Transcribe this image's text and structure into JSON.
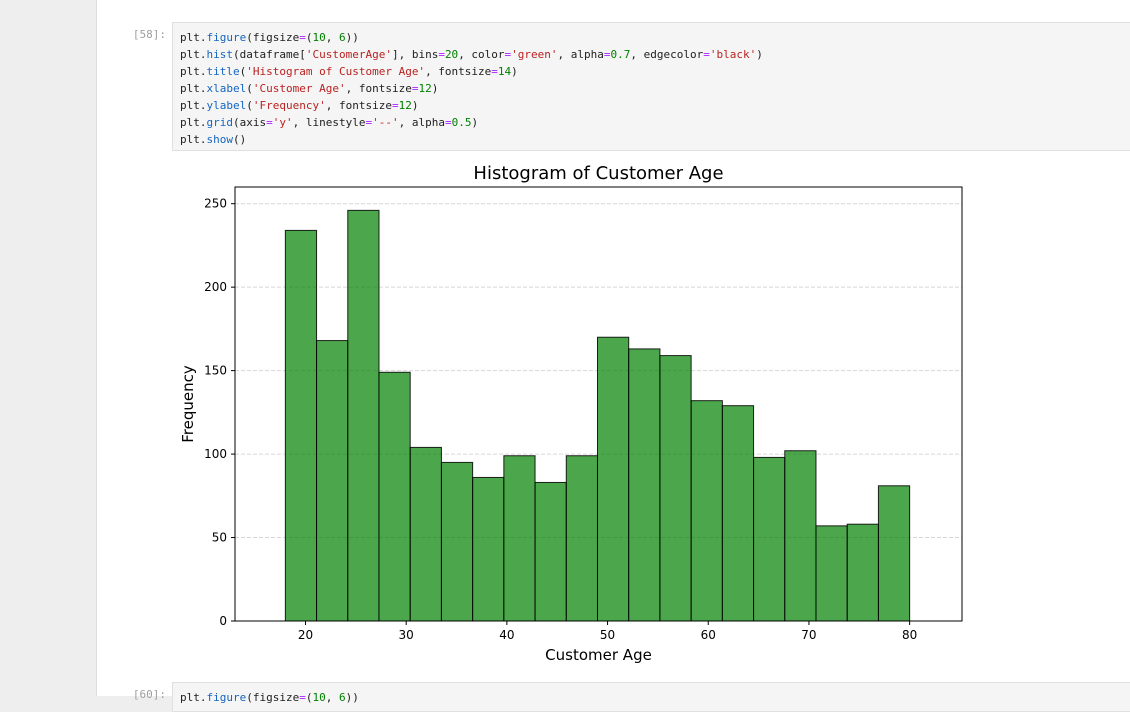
{
  "cells": [
    {
      "prompt": "[58]:",
      "code_lines": [
        [
          [
            "plt",
            "name"
          ],
          [
            ".",
            "op"
          ],
          [
            "figure",
            "fn"
          ],
          [
            "(figsize",
            "name"
          ],
          [
            "=",
            "eq"
          ],
          [
            "(",
            "op"
          ],
          [
            "10",
            "num"
          ],
          [
            ", ",
            "op"
          ],
          [
            "6",
            "num"
          ],
          [
            "))",
            "op"
          ]
        ],
        [
          [
            "plt",
            "name"
          ],
          [
            ".",
            "op"
          ],
          [
            "hist",
            "fn"
          ],
          [
            "(dataframe[",
            "name"
          ],
          [
            "'CustomerAge'",
            "str"
          ],
          [
            "], bins",
            "name"
          ],
          [
            "=",
            "eq"
          ],
          [
            "20",
            "num"
          ],
          [
            ", color",
            "name"
          ],
          [
            "=",
            "eq"
          ],
          [
            "'green'",
            "str"
          ],
          [
            ", alpha",
            "name"
          ],
          [
            "=",
            "eq"
          ],
          [
            "0.7",
            "num"
          ],
          [
            ", edgecolor",
            "name"
          ],
          [
            "=",
            "eq"
          ],
          [
            "'black'",
            "str"
          ],
          [
            ")",
            "op"
          ]
        ],
        [
          [
            "plt",
            "name"
          ],
          [
            ".",
            "op"
          ],
          [
            "title",
            "fn"
          ],
          [
            "(",
            "op"
          ],
          [
            "'Histogram of Customer Age'",
            "str"
          ],
          [
            ", fontsize",
            "name"
          ],
          [
            "=",
            "eq"
          ],
          [
            "14",
            "num"
          ],
          [
            ")",
            "op"
          ]
        ],
        [
          [
            "plt",
            "name"
          ],
          [
            ".",
            "op"
          ],
          [
            "xlabel",
            "fn"
          ],
          [
            "(",
            "op"
          ],
          [
            "'Customer Age'",
            "str"
          ],
          [
            ", fontsize",
            "name"
          ],
          [
            "=",
            "eq"
          ],
          [
            "12",
            "num"
          ],
          [
            ")",
            "op"
          ]
        ],
        [
          [
            "plt",
            "name"
          ],
          [
            ".",
            "op"
          ],
          [
            "ylabel",
            "fn"
          ],
          [
            "(",
            "op"
          ],
          [
            "'Frequency'",
            "str"
          ],
          [
            ", fontsize",
            "name"
          ],
          [
            "=",
            "eq"
          ],
          [
            "12",
            "num"
          ],
          [
            ")",
            "op"
          ]
        ],
        [
          [
            "plt",
            "name"
          ],
          [
            ".",
            "op"
          ],
          [
            "grid",
            "fn"
          ],
          [
            "(axis",
            "name"
          ],
          [
            "=",
            "eq"
          ],
          [
            "'y'",
            "str"
          ],
          [
            ", linestyle",
            "name"
          ],
          [
            "=",
            "eq"
          ],
          [
            "'--'",
            "str"
          ],
          [
            ", alpha",
            "name"
          ],
          [
            "=",
            "eq"
          ],
          [
            "0.5",
            "num"
          ],
          [
            ")",
            "op"
          ]
        ],
        [
          [
            "plt",
            "name"
          ],
          [
            ".",
            "op"
          ],
          [
            "show",
            "fn"
          ],
          [
            "()",
            "op"
          ]
        ]
      ]
    },
    {
      "prompt": "[60]:",
      "code_lines": [
        [
          [
            "plt",
            "name"
          ],
          [
            ".",
            "op"
          ],
          [
            "figure",
            "fn"
          ],
          [
            "(figsize",
            "name"
          ],
          [
            "=",
            "eq"
          ],
          [
            "(",
            "op"
          ],
          [
            "10",
            "num"
          ],
          [
            ", ",
            "op"
          ],
          [
            "6",
            "num"
          ],
          [
            "))",
            "op"
          ]
        ]
      ]
    }
  ],
  "chart_data": {
    "type": "bar",
    "title": "Histogram of Customer Age",
    "xlabel": "Customer Age",
    "ylabel": "Frequency",
    "bin_edges": [
      18,
      21.1,
      24.2,
      27.3,
      30.4,
      33.5,
      36.6,
      39.7,
      42.8,
      45.9,
      49,
      52.1,
      55.2,
      58.3,
      61.4,
      64.5,
      67.6,
      70.7,
      73.8,
      76.9,
      80
    ],
    "values": [
      234,
      168,
      246,
      149,
      104,
      95,
      86,
      99,
      83,
      99,
      170,
      163,
      159,
      132,
      129,
      98,
      102,
      57,
      58,
      81
    ],
    "xlim": [
      13,
      85.2
    ],
    "ylim": [
      0,
      260
    ],
    "xticks": [
      "20",
      "30",
      "40",
      "50",
      "60",
      "70",
      "80"
    ],
    "yticks": [
      "0",
      "50",
      "100",
      "150",
      "200",
      "250"
    ],
    "grid": "y, dashed",
    "bar_color": "#008000",
    "bar_alpha": 0.7,
    "edge_color": "#000000"
  }
}
